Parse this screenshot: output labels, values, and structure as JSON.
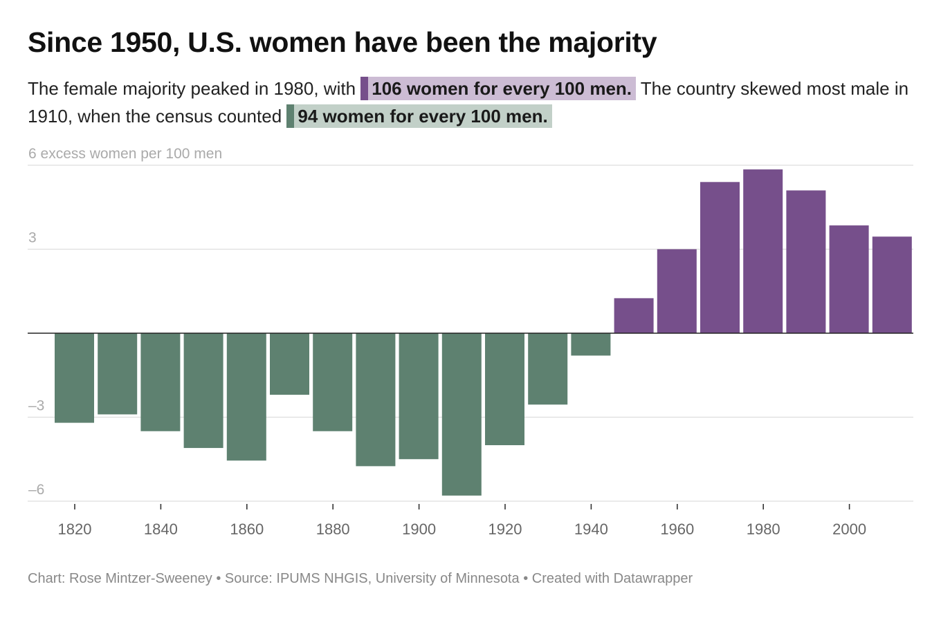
{
  "title": "Since 1950, U.S. women have been the majority",
  "subtitle": {
    "part1": "The female majority peaked in 1980, with",
    "highlight1": "106 women for every 100 men.",
    "part2": "The country skewed most male in 1910, when the census counted",
    "highlight2": "94 women for every 100 men."
  },
  "footer": {
    "chart_credit": "Chart: Rose Mintzer-Sweeney",
    "separator": "•",
    "source": "Source: IPUMS NHGIS, University of Minnesota",
    "created_with": "Created with Datawrapper"
  },
  "colors": {
    "positive": "#764f8b",
    "negative": "#5e8170",
    "highlight_purple_bg": "#ccbcd4",
    "highlight_green_bg": "#c2d0c8",
    "grid": "#dddddd",
    "baseline": "#222222",
    "axis_label": "#aaaaaa",
    "tick_label": "#666666"
  },
  "chart_data": {
    "type": "bar",
    "title": "Since 1950, U.S. women have been the majority",
    "ylabel": "excess women per 100 men",
    "ylim": [
      -6,
      6
    ],
    "yticks": [
      6,
      3,
      -3,
      -6
    ],
    "ytick_labels": [
      "6 excess women per 100 men",
      "3",
      "–3",
      "–6"
    ],
    "xtick_labels": [
      "1820",
      "1840",
      "1860",
      "1880",
      "1900",
      "1920",
      "1940",
      "1960",
      "1980",
      "2000"
    ],
    "categories": [
      "1820",
      "1830",
      "1840",
      "1850",
      "1860",
      "1870",
      "1880",
      "1890",
      "1900",
      "1910",
      "1920",
      "1930",
      "1940",
      "1950",
      "1960",
      "1970",
      "1980",
      "1990",
      "2000",
      "2010"
    ],
    "values": [
      -3.2,
      -2.9,
      -3.5,
      -4.1,
      -4.55,
      -2.2,
      -3.5,
      -4.75,
      -4.5,
      -5.8,
      -4.0,
      -2.55,
      -0.8,
      1.25,
      3.0,
      5.4,
      5.85,
      5.1,
      3.85,
      3.45
    ],
    "grid": true,
    "legend": "none"
  }
}
